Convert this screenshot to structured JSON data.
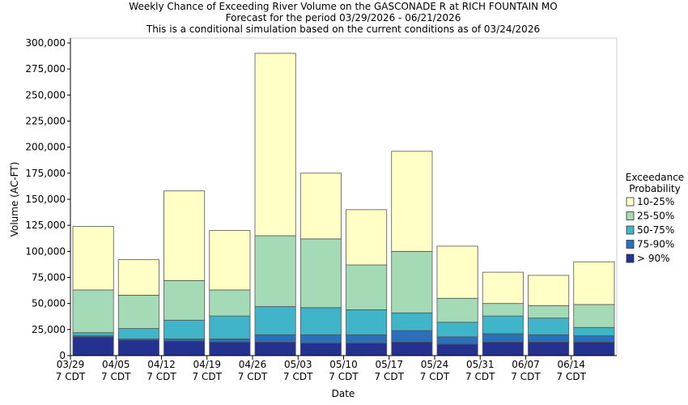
{
  "chart_data": {
    "type": "stacked_bar",
    "title": "Weekly Chance of Exceeding River Volume on the GASCONADE R at RICH FOUNTAIN MO",
    "subtitle": "Forecast for the period 03/29/2026 - 06/21/2026",
    "note": "This is a conditional simulation based on the current conditions as of 03/24/2026",
    "x_label": "Date",
    "y_label": "Volume (AC-FT)",
    "legend_title": "Exceedance Probability",
    "legend_position": "right",
    "grid": false,
    "categories": [
      "03/29\n7 CDT",
      "04/05\n7 CDT",
      "04/12\n7 CDT",
      "04/19\n7 CDT",
      "04/26\n7 CDT",
      "05/03\n7 CDT",
      "05/10\n7 CDT",
      "05/17\n7 CDT",
      "05/24\n7 CDT",
      "05/31\n7 CDT",
      "06/07\n7 CDT",
      "06/14\n7 CDT"
    ],
    "series": [
      {
        "name": "> 90%",
        "color": "#243190",
        "values": [
          18000,
          15000,
          14000,
          13000,
          13000,
          12000,
          12000,
          13000,
          11000,
          13000,
          13000,
          13000
        ]
      },
      {
        "name": "75-90%",
        "color": "#2b70b8",
        "values": [
          1000,
          1000,
          2000,
          3000,
          7000,
          8000,
          8000,
          11000,
          7000,
          8000,
          7000,
          6000
        ]
      },
      {
        "name": "50-75%",
        "color": "#40b4c8",
        "values": [
          3000,
          10000,
          18000,
          22000,
          27000,
          26000,
          24000,
          17000,
          14000,
          17000,
          16000,
          8000
        ]
      },
      {
        "name": "25-50%",
        "color": "#a4dbb6",
        "values": [
          41000,
          32000,
          38000,
          25000,
          68000,
          66000,
          43000,
          59000,
          23000,
          12000,
          12000,
          22000
        ]
      },
      {
        "name": "10-25%",
        "color": "#ffffc6",
        "values": [
          61000,
          34000,
          86000,
          57000,
          175000,
          63000,
          53000,
          96000,
          50000,
          30000,
          29000,
          41000
        ]
      }
    ],
    "ylim": [
      0,
      300000
    ],
    "yticks": [
      0,
      {
        "value": 25000,
        "label": "25,000"
      },
      {
        "value": 50000,
        "label": "50,000"
      },
      {
        "value": 75000,
        "label": "75,000"
      },
      {
        "value": 100000,
        "label": "100,000"
      },
      {
        "value": 125000,
        "label": "125,000"
      },
      {
        "value": 150000,
        "label": "150,000"
      },
      {
        "value": 175000,
        "label": "175,000"
      },
      {
        "value": 200000,
        "label": "200,000"
      },
      {
        "value": 225000,
        "label": "225,000"
      },
      {
        "value": 250000,
        "label": "250,000"
      },
      {
        "value": 275000,
        "label": "275,000"
      },
      {
        "value": 300000,
        "label": "300,000"
      }
    ]
  }
}
